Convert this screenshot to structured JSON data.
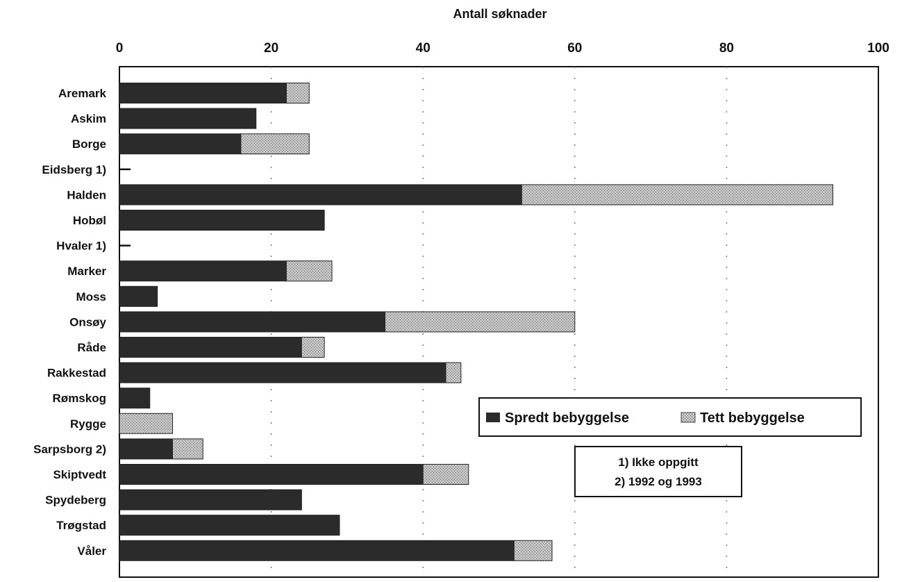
{
  "chart_data": {
    "type": "bar",
    "orientation": "horizontal",
    "stacked": true,
    "title": "",
    "xlabel": "Antall søknader",
    "ylabel": "",
    "xlim": [
      0,
      100
    ],
    "x_ticks": [
      0,
      20,
      40,
      60,
      80,
      100
    ],
    "grid": true,
    "legend_position": "center-right",
    "categories": [
      "Aremark",
      "Askim",
      "Borge",
      "Eidsberg 1)",
      "Halden",
      "Hobøl",
      "Hvaler 1)",
      "Marker",
      "Moss",
      "Onsøy",
      "Råde",
      "Rakkestad",
      "Rømskog",
      "Rygge",
      "Sarpsborg 2)",
      "Skiptvedt",
      "Spydeberg",
      "Trøgstad",
      "Våler"
    ],
    "series": [
      {
        "name": "Spredt bebyggelse",
        "color": "#2b2b2b",
        "values": [
          22,
          18,
          16,
          0,
          53,
          27,
          0,
          22,
          5,
          35,
          24,
          43,
          4,
          0,
          7,
          40,
          24,
          29,
          52
        ]
      },
      {
        "name": "Tett bebyggelse",
        "color": "#b5b5b5",
        "values": [
          3,
          0,
          9,
          0,
          41,
          0,
          0,
          6,
          0,
          25,
          3,
          2,
          0,
          7,
          4,
          6,
          0,
          0,
          5
        ]
      }
    ],
    "notes": [
      "1) Ikke oppgitt",
      "2) 1992 og 1993"
    ]
  }
}
